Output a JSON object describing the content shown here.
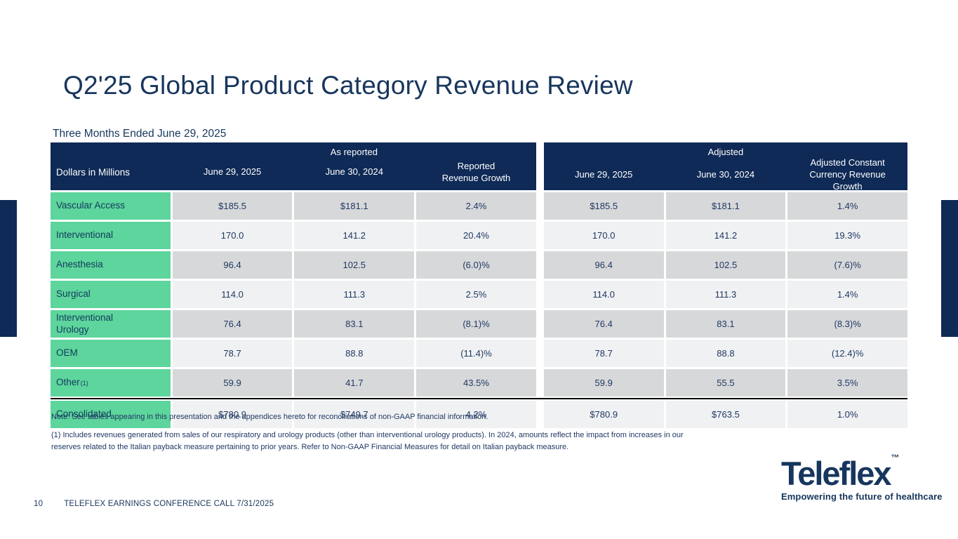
{
  "slide": {
    "title": "Q2'25 Global Product Category Revenue Review",
    "table_caption": "Three Months Ended June 29, 2025",
    "footnote_note": "Note: See tables appearing in this presentation and the appendices hereto for reconciliations of non-GAAP financial information.",
    "footnote_1": "(1) Includes revenues generated from sales of our respiratory and urology products (other than interventional urology products). In 2024, amounts reflect the impact from increases in our reserves related to the Italian payback measure pertaining to prior years. Refer to Non-GAAP Financial Measures for detail on Italian payback measure.",
    "footer": {
      "page_number": "10",
      "text": "TELEFLEX EARNINGS CONFERENCE CALL 7/31/2025"
    },
    "logo": {
      "brand": "Teleflex",
      "trademark": "™",
      "tagline": "Empowering the future of healthcare"
    }
  },
  "table": {
    "corner_label": "Dollars in Millions",
    "group_headers": {
      "left": "As reported",
      "right": "Adjusted"
    },
    "columns": [
      "June 29, 2025",
      "June 30, 2024",
      "Reported\nRevenue Growth",
      "June 29, 2025",
      "June 30, 2024",
      "Adjusted Constant Currency Revenue Growth"
    ],
    "rows": [
      {
        "category": "Vascular Access",
        "sup": "",
        "values": [
          "$185.5",
          "$181.1",
          "2.4%",
          "$185.5",
          "$181.1",
          "1.4%"
        ],
        "total": false
      },
      {
        "category": "Interventional",
        "sup": "",
        "values": [
          "170.0",
          "141.2",
          "20.4%",
          "170.0",
          "141.2",
          "19.3%"
        ],
        "total": false
      },
      {
        "category": "Anesthesia",
        "sup": "",
        "values": [
          "96.4",
          "102.5",
          "(6.0)%",
          "96.4",
          "102.5",
          "(7.6)%"
        ],
        "total": false
      },
      {
        "category": "Surgical",
        "sup": "",
        "values": [
          "114.0",
          "111.3",
          "2.5%",
          "114.0",
          "111.3",
          "1.4%"
        ],
        "total": false
      },
      {
        "category": "Interventional Urology",
        "sup": "",
        "values": [
          "76.4",
          "83.1",
          "(8.1)%",
          "76.4",
          "83.1",
          "(8.3)%"
        ],
        "total": false
      },
      {
        "category": "OEM",
        "sup": "",
        "values": [
          "78.7",
          "88.8",
          "(11.4)%",
          "78.7",
          "88.8",
          "(12.4)%"
        ],
        "total": false
      },
      {
        "category": "Other",
        "sup": "(1)",
        "values": [
          "59.9",
          "41.7",
          "43.5%",
          "59.9",
          "55.5",
          "3.5%"
        ],
        "total": false
      },
      {
        "category": "Consolidated",
        "sup": "",
        "values": [
          "$780.9",
          "$749.7",
          "4.2%",
          "$780.9",
          "$763.5",
          "1.0%"
        ],
        "total": true
      }
    ]
  },
  "colors": {
    "header_navy": "#0f2a56",
    "category_green": "#5dd59c",
    "row_gray": "#d7d8d9",
    "row_light": "#f0f1f2",
    "text_navy": "#1f3864",
    "title_navy": "#17365d",
    "total_rule": "#000000"
  }
}
